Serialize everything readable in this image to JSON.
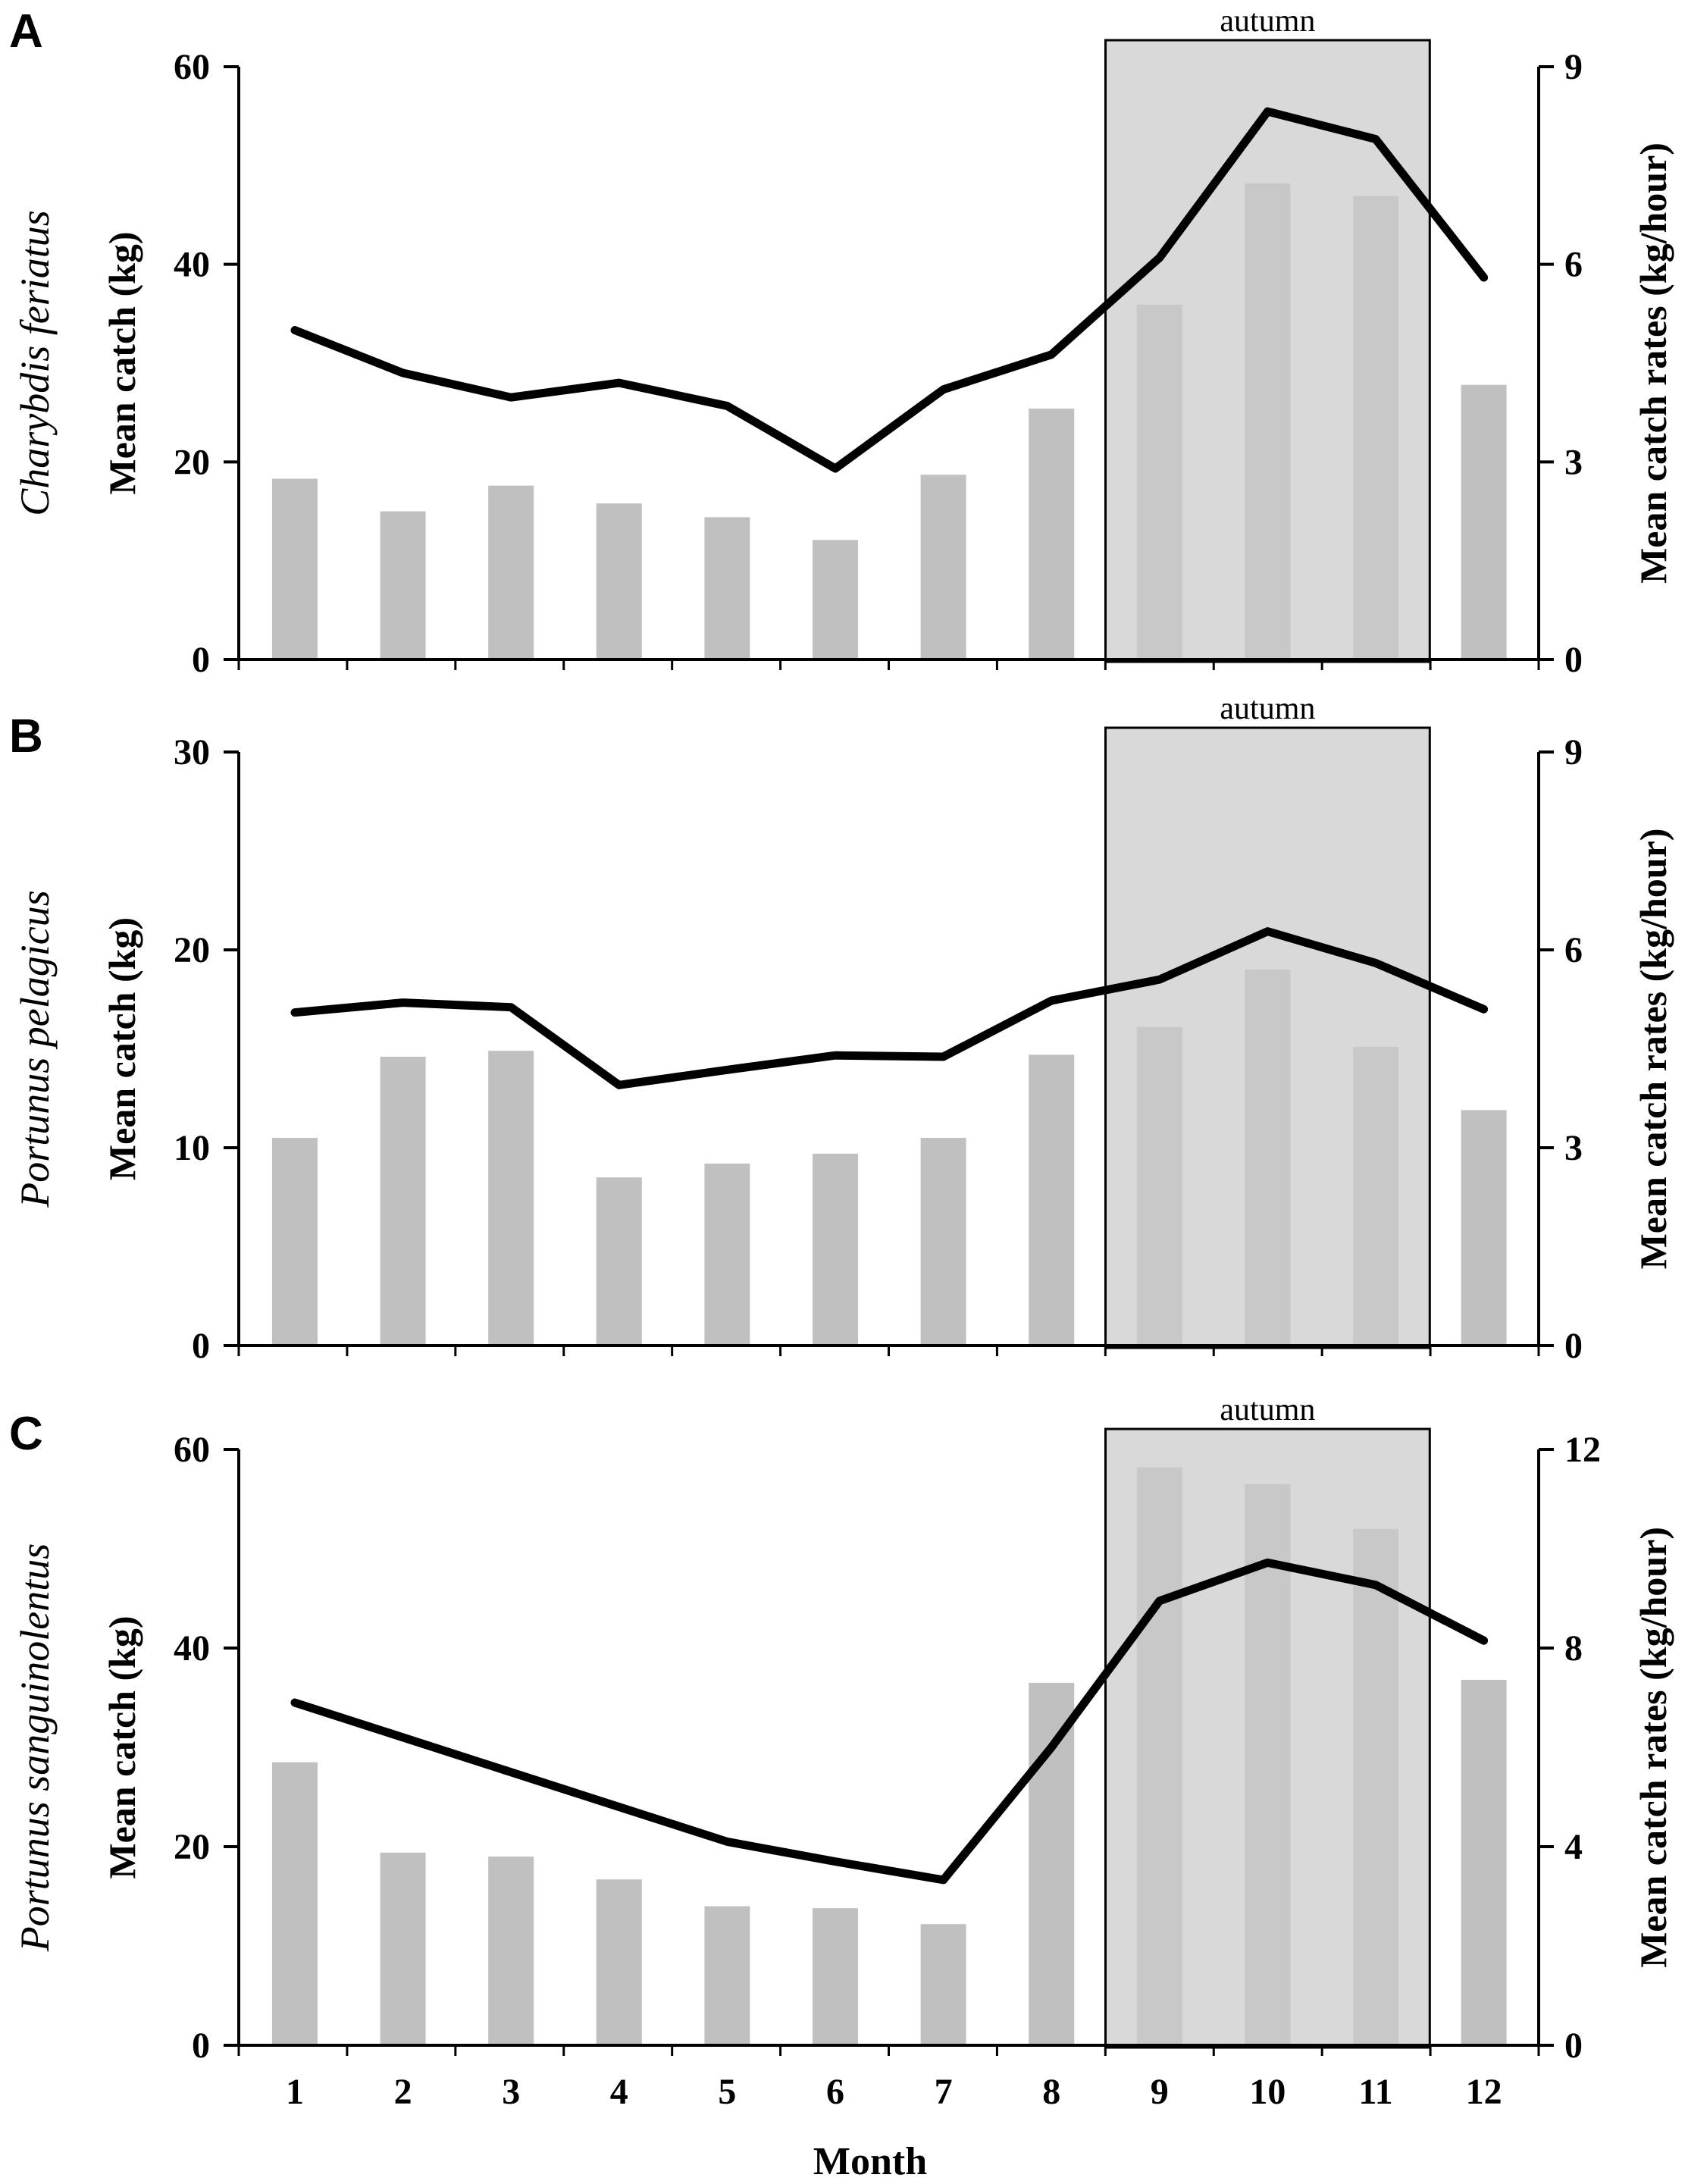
{
  "colors": {
    "bar": "#c0c0c0",
    "line": "#000000",
    "season_fill": "#d9d9d9",
    "season_stroke": "#000000"
  },
  "x_axis": {
    "label": "Month",
    "ticks": [
      "1",
      "2",
      "3",
      "4",
      "5",
      "6",
      "7",
      "8",
      "9",
      "10",
      "11",
      "12"
    ]
  },
  "chart_data": [
    {
      "panel": "A",
      "type": "bar+line",
      "species": "Charybdis feriatus",
      "categories": [
        1,
        2,
        3,
        4,
        5,
        6,
        7,
        8,
        9,
        10,
        11,
        12
      ],
      "ylabel_left": "Mean catch (kg)",
      "ylabel_right": "Mean catch rates (kg/hour)",
      "left_ylim": [
        0,
        60
      ],
      "left_ticks": [
        0,
        20,
        40,
        60
      ],
      "right_ylim": [
        0,
        9
      ],
      "right_ticks": [
        0,
        3,
        6,
        9
      ],
      "series": [
        {
          "name": "Mean catch (kg)",
          "type": "bar",
          "axis": "left",
          "values": [
            18.3,
            15.0,
            17.6,
            15.8,
            14.4,
            12.1,
            18.7,
            25.4,
            35.9,
            48.2,
            46.9,
            27.8
          ]
        },
        {
          "name": "Mean catch rates (kg/hour)",
          "type": "line",
          "axis": "right",
          "values": [
            5.0,
            4.35,
            3.98,
            4.2,
            3.85,
            2.9,
            4.1,
            4.63,
            6.1,
            8.32,
            7.9,
            5.8
          ]
        }
      ],
      "highlight": {
        "label": "autumn",
        "from_month": 9,
        "to_month": 11
      }
    },
    {
      "panel": "B",
      "type": "bar+line",
      "species": "Portunus pelagicus",
      "categories": [
        1,
        2,
        3,
        4,
        5,
        6,
        7,
        8,
        9,
        10,
        11,
        12
      ],
      "ylabel_left": "Mean catch (kg)",
      "ylabel_right": "Mean catch rates (kg/hour)",
      "left_ylim": [
        0,
        30
      ],
      "left_ticks": [
        0,
        10,
        20,
        30
      ],
      "right_ylim": [
        0,
        9
      ],
      "right_ticks": [
        0,
        3,
        6,
        9
      ],
      "series": [
        {
          "name": "Mean catch (kg)",
          "type": "bar",
          "axis": "left",
          "values": [
            10.5,
            14.6,
            14.9,
            8.5,
            9.2,
            9.7,
            10.5,
            14.7,
            16.1,
            19.0,
            15.1,
            11.9
          ]
        },
        {
          "name": "Mean catch rates (kg/hour)",
          "type": "line",
          "axis": "right",
          "values": [
            5.05,
            5.2,
            5.13,
            3.95,
            4.18,
            4.4,
            4.38,
            5.23,
            5.55,
            6.28,
            5.8,
            5.1
          ]
        }
      ],
      "highlight": {
        "label": "autumn",
        "from_month": 9,
        "to_month": 11
      }
    },
    {
      "panel": "C",
      "type": "bar+line",
      "species": "Portunus sanguinolentus",
      "categories": [
        1,
        2,
        3,
        4,
        5,
        6,
        7,
        8,
        9,
        10,
        11,
        12
      ],
      "ylabel_left": "Mean catch (kg)",
      "ylabel_right": "Mean catch rates (kg/hour)",
      "left_ylim": [
        0,
        60
      ],
      "left_ticks": [
        0,
        20,
        40,
        60
      ],
      "right_ylim": [
        0,
        12
      ],
      "right_ticks": [
        0,
        4,
        8,
        12
      ],
      "series": [
        {
          "name": "Mean catch (kg)",
          "type": "bar",
          "axis": "left",
          "values": [
            28.5,
            19.4,
            19.0,
            16.7,
            14.0,
            13.8,
            12.2,
            36.5,
            58.2,
            56.5,
            52.0,
            36.8
          ]
        },
        {
          "name": "Mean catch rates (kg/hour)",
          "type": "line",
          "axis": "right",
          "values": [
            6.9,
            6.2,
            5.5,
            4.8,
            4.1,
            3.7,
            3.33,
            6.0,
            8.95,
            9.72,
            9.27,
            8.15
          ]
        }
      ],
      "highlight": {
        "label": "autumn",
        "from_month": 9,
        "to_month": 11
      }
    }
  ]
}
